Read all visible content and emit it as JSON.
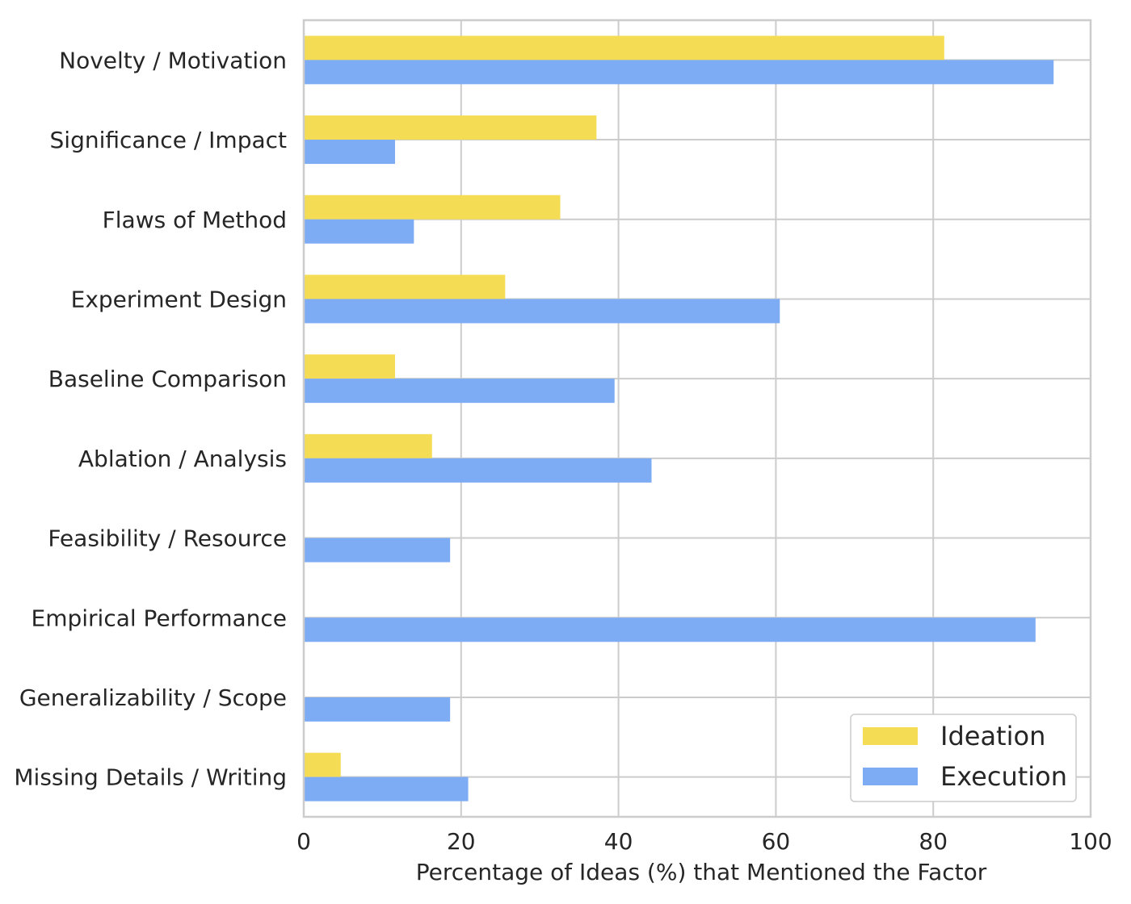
{
  "chart_data": {
    "type": "bar",
    "orientation": "horizontal",
    "categories": [
      "Novelty / Motivation",
      "Significance / Impact",
      "Flaws of Method",
      "Experiment Design",
      "Baseline Comparison",
      "Ablation / Analysis",
      "Feasibility / Resource",
      "Empirical Performance",
      "Generalizability / Scope",
      "Missing Details / Writing"
    ],
    "series": [
      {
        "name": "Ideation",
        "color": "#F5DC55",
        "values": [
          81.4,
          37.2,
          32.6,
          25.6,
          11.6,
          16.3,
          0,
          0,
          0,
          4.7
        ]
      },
      {
        "name": "Execution",
        "color": "#7DACF5",
        "values": [
          95.3,
          11.6,
          14.0,
          60.5,
          39.5,
          44.2,
          18.6,
          93.0,
          18.6,
          20.9
        ]
      }
    ],
    "xlabel": "Percentage of Ideas (%) that Mentioned the Factor",
    "ylabel": "",
    "title": "",
    "xlim": [
      0,
      100
    ],
    "xticks": [
      "0",
      "20",
      "40",
      "60",
      "80",
      "100"
    ],
    "grid": true,
    "legend_position": "lower-right"
  }
}
